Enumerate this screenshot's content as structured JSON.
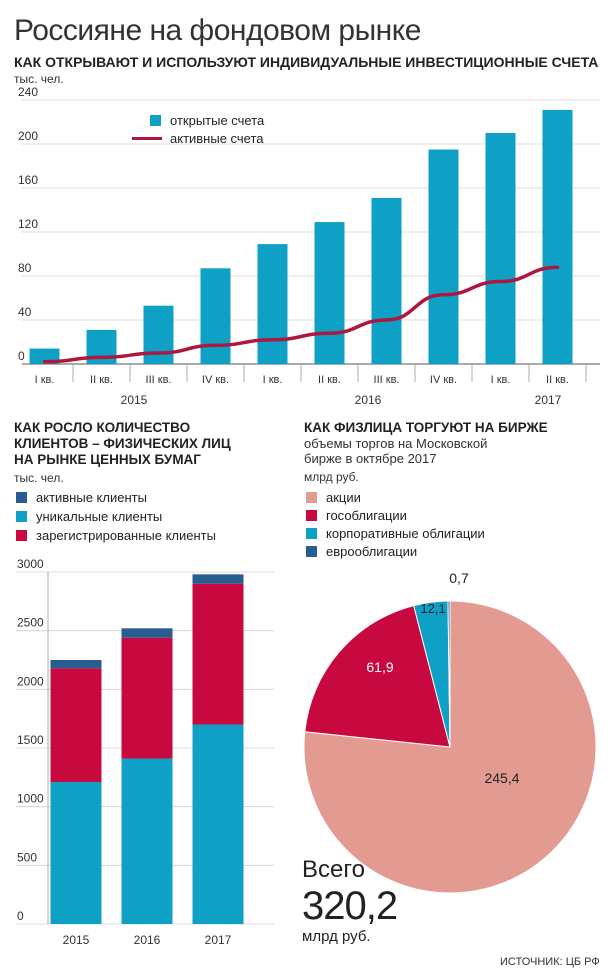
{
  "header": {
    "title": "Россияне на фондовом рынке"
  },
  "chart1": {
    "title": "КАК ОТКРЫВАЮТ И ИСПОЛЬЗУЮТ ИНДИВИДУАЛЬНЫЕ ИНВЕСТИЦИОННЫЕ СЧЕТА",
    "unit": "тыс. чел.",
    "yticks": [
      "240",
      "200",
      "160",
      "120",
      "80",
      "40",
      "0"
    ],
    "legend": {
      "bars": "открытые счета",
      "line": "активные счета"
    },
    "quarters": [
      "I кв.",
      "II кв.",
      "III кв.",
      "IV кв.",
      "I кв.",
      "II кв.",
      "III кв.",
      "IV кв.",
      "I кв.",
      "II кв."
    ],
    "years": [
      "2015",
      "2016",
      "2017"
    ]
  },
  "chart2": {
    "title_lines": [
      "КАК РОСЛО КОЛИЧЕСТВО",
      "КЛИЕНТОВ – ФИЗИЧЕСКИХ ЛИЦ",
      "НА РЫНКЕ ЦЕННЫХ БУМАГ"
    ],
    "unit": "тыс. чел.",
    "legend": [
      "активные клиенты",
      "уникальные клиенты",
      "зарегистрированные клиенты"
    ],
    "yticks": [
      "3000",
      "2500",
      "2000",
      "1500",
      "1000",
      "500",
      "0"
    ],
    "categories": [
      "2015",
      "2016",
      "2017"
    ]
  },
  "chart3": {
    "title": "КАК ФИЗЛИЦА ТОРГУЮТ НА БИРЖЕ",
    "subtitle_lines": [
      "объемы торгов на Московской",
      "бирже в октябре 2017"
    ],
    "unit": "млрд руб.",
    "legend": [
      "акции",
      "гособлигации",
      "корпоративные облигации",
      "еврооблигации"
    ],
    "slice_labels": [
      "245,4",
      "61,9",
      "12,1",
      "0,7"
    ],
    "total_label": "Всего",
    "total_value": "320,2",
    "total_unit": "млрд руб."
  },
  "source": "ИСТОЧНИК: ЦБ РФ",
  "colors": {
    "teal": "#0fa0c6",
    "crimson": "#c8093f",
    "navy": "#2a5d8f",
    "salmon": "#e39a90",
    "line": "#b0173f"
  },
  "chart_data": [
    {
      "type": "bar",
      "title": "КАК ОТКРЫВАЮТ И ИСПОЛЬЗУЮТ ИНДИВИДУАЛЬНЫЕ ИНВЕСТИЦИОННЫЕ СЧЕТА",
      "ylabel": "тыс. чел.",
      "categories": [
        "I кв. 2015",
        "II кв. 2015",
        "III кв. 2015",
        "IV кв. 2015",
        "I кв. 2016",
        "II кв. 2016",
        "III кв. 2016",
        "IV кв. 2016",
        "I кв. 2017",
        "II кв. 2017"
      ],
      "series": [
        {
          "name": "открытые счета",
          "type": "bar",
          "values": [
            14,
            31,
            53,
            87,
            109,
            129,
            151,
            195,
            210,
            231
          ]
        },
        {
          "name": "активные счета",
          "type": "line",
          "values": [
            2,
            6,
            10,
            17,
            22,
            28,
            40,
            63,
            75,
            88
          ]
        }
      ],
      "ylim": [
        0,
        240
      ],
      "grid": true,
      "legend": "top-left"
    },
    {
      "type": "bar",
      "title": "КАК РОСЛО КОЛИЧЕСТВО КЛИЕНТОВ – ФИЗИЧЕСКИХ ЛИЦ НА РЫНКЕ ЦЕННЫХ БУМАГ",
      "ylabel": "тыс. чел.",
      "stacked": true,
      "categories": [
        "2015",
        "2016",
        "2017"
      ],
      "series": [
        {
          "name": "уникальные клиенты",
          "values": [
            1210,
            1410,
            1700
          ]
        },
        {
          "name": "зарегистрированные клиенты",
          "values": [
            970,
            1030,
            1200
          ]
        },
        {
          "name": "активные клиенты",
          "values": [
            70,
            80,
            80
          ]
        }
      ],
      "ylim": [
        0,
        3000
      ],
      "grid": true,
      "legend": "top"
    },
    {
      "type": "pie",
      "title": "КАК ФИЗЛИЦА ТОРГУЮТ НА БИРЖЕ",
      "categories": [
        "акции",
        "гособлигации",
        "корпоративные облигации",
        "еврооблигации"
      ],
      "values": [
        245.4,
        61.9,
        12.1,
        0.7
      ],
      "total": 320.2,
      "unit": "млрд руб."
    }
  ]
}
